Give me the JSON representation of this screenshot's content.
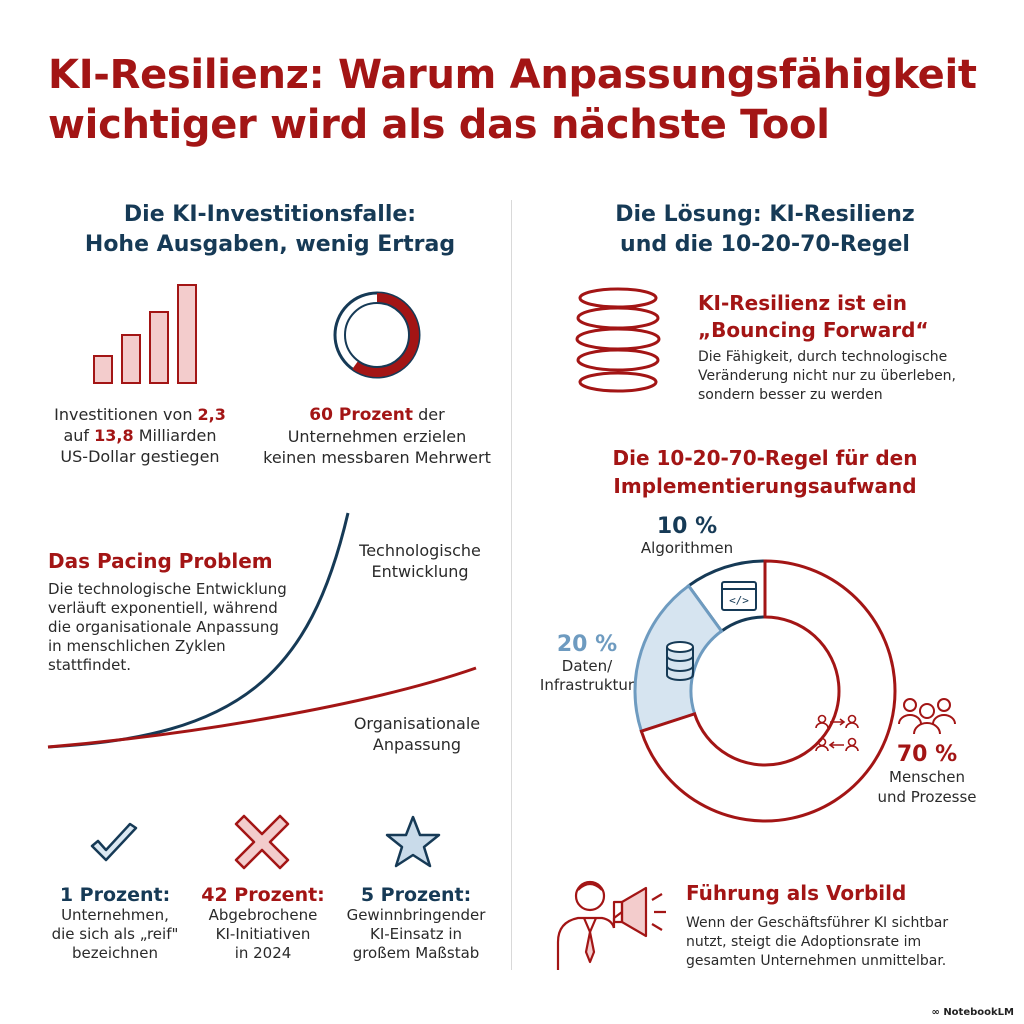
{
  "title": {
    "line1": "KI-Resilienz: Warum Anpassungsfähigkeit",
    "line2": "wichtiger wird als das nächste Tool"
  },
  "left": {
    "heading": {
      "line1": "Die KI-Investitionsfalle:",
      "line2": "Hohe Ausgaben, wenig Ertrag"
    },
    "investment": {
      "icon": "bar-chart-icon",
      "line1_pre": "Investitionen von ",
      "line1_num": "2,3",
      "line2_pre": "auf ",
      "line2_num": "13,8",
      "line2_post": " Milliarden",
      "line3": "US-Dollar gestiegen"
    },
    "no_value": {
      "icon": "donut-60-icon",
      "fraction": 0.6,
      "num": "60 Prozent",
      "line1_post": " der",
      "line2": "Unternehmen erzielen",
      "line3": "keinen messbaren Mehrwert"
    },
    "pacing": {
      "title": "Das Pacing Problem",
      "lines": [
        "Die technologische Entwicklung",
        "verläuft exponentiell, während",
        "die organisationale Anpassung",
        "in menschlichen Zyklen",
        "stattfindet."
      ],
      "tech_label": [
        "Technologische",
        "Entwicklung"
      ],
      "org_label": [
        "Organisationale",
        "Anpassung"
      ]
    },
    "stats": [
      {
        "icon": "checkmark-icon",
        "title": "1 Prozent:",
        "lines": [
          "Unternehmen,",
          "die sich als „reif\"",
          "bezeichnen"
        ]
      },
      {
        "icon": "cross-icon",
        "title": "42 Prozent:",
        "lines": [
          "Abgebrochene",
          "KI-Initiativen",
          "in 2024"
        ]
      },
      {
        "icon": "star-icon",
        "title": "5 Prozent:",
        "lines": [
          "Gewinnbringender",
          "KI-Einsatz in",
          "großem Maßstab"
        ]
      }
    ]
  },
  "right": {
    "heading": {
      "line1": "Die Lösung: KI-Resilienz",
      "line2": "und die 10-20-70-Regel"
    },
    "resilience": {
      "icon": "spring-icon",
      "title1": "KI-Resilienz ist ein",
      "title2": "„Bouncing Forward“",
      "lines": [
        "Die Fähigkeit, durch technologische",
        "Veränderung nicht nur zu überleben,",
        "sondern besser zu werden"
      ]
    },
    "rule": {
      "heading1": "Die 10-20-70-Regel für den",
      "heading2": "Implementierungsaufwand",
      "segments": [
        {
          "pct": "10 %",
          "value": 10,
          "label": [
            "Algorithmen"
          ],
          "icon": "code-window-icon",
          "color": "#163a56"
        },
        {
          "pct": "20 %",
          "value": 20,
          "label": [
            "Daten/",
            "Infrastruktur"
          ],
          "icon": "database-icon",
          "color": "#6e9bc0"
        },
        {
          "pct": "70 %",
          "value": 70,
          "label": [
            "Menschen",
            "und Prozesse"
          ],
          "icon": "people-process-icon",
          "color": "#a31515"
        }
      ],
      "people_icon": "group-icon"
    },
    "leadership": {
      "icon": "megaphone-person-icon",
      "title": "Führung als Vorbild",
      "lines": [
        "Wenn der Geschäftsführer KI sichtbar",
        "nutzt, steigt die Adoptionsrate im",
        "gesamten Unternehmen unmittelbar."
      ]
    }
  },
  "brand": "NotebookLM",
  "colors": {
    "accent_red": "#a31515",
    "navy": "#163a56",
    "light_blue": "#6e9bc0"
  }
}
